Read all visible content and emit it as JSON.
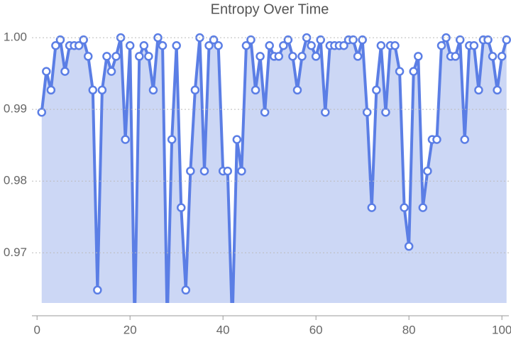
{
  "chart_data": {
    "type": "area_line",
    "title": "Entropy Over Time",
    "x": [
      1,
      2,
      3,
      4,
      5,
      6,
      7,
      8,
      9,
      10,
      11,
      12,
      13,
      14,
      15,
      16,
      17,
      18,
      19,
      20,
      21,
      22,
      23,
      24,
      25,
      26,
      27,
      28,
      29,
      30,
      31,
      32,
      33,
      34,
      35,
      36,
      37,
      38,
      39,
      40,
      41,
      42,
      43,
      44,
      45,
      46,
      47,
      48,
      49,
      50,
      51,
      52,
      53,
      54,
      55,
      56,
      57,
      58,
      59,
      60,
      61,
      62,
      63,
      64,
      65,
      66,
      67,
      68,
      69,
      70,
      71,
      72,
      73,
      74,
      75,
      76,
      77,
      78,
      79,
      80,
      81,
      82,
      83,
      84,
      85,
      86,
      87,
      88,
      89,
      90,
      91,
      92,
      93,
      94,
      95,
      96,
      97,
      98,
      99,
      100,
      101
    ],
    "values": [
      0.9896,
      0.9953,
      0.9927,
      0.9989,
      0.9997,
      0.9953,
      0.9989,
      0.9989,
      0.9989,
      0.9997,
      0.9974,
      0.9927,
      0.9648,
      0.9927,
      0.9974,
      0.9953,
      0.9974,
      1.0,
      0.9858,
      0.9989,
      0.96,
      0.9974,
      0.9989,
      0.9974,
      0.9927,
      1.0,
      0.9989,
      0.96,
      0.9858,
      0.9989,
      0.9763,
      0.9648,
      0.9814,
      0.9927,
      1.0,
      0.9814,
      0.9989,
      0.9997,
      0.9989,
      0.9814,
      0.9814,
      0.96,
      0.9858,
      0.9814,
      0.9989,
      0.9997,
      0.9927,
      0.9974,
      0.9896,
      0.9989,
      0.9974,
      0.9974,
      0.9989,
      0.9997,
      0.9974,
      0.9927,
      0.9974,
      1.0,
      0.9989,
      0.9974,
      0.9997,
      0.9896,
      0.9989,
      0.9989,
      0.9989,
      0.9989,
      0.9997,
      0.9997,
      0.9974,
      0.9997,
      0.9896,
      0.9763,
      0.9927,
      0.9989,
      0.9896,
      0.9989,
      0.9989,
      0.9953,
      0.9763,
      0.9709,
      0.9953,
      0.9974,
      0.9763,
      0.9814,
      0.9858,
      0.9858,
      0.9989,
      1.0,
      0.9974,
      0.9974,
      0.9997,
      0.9858,
      0.9989,
      0.9989,
      0.9927,
      0.9997,
      0.9997,
      0.9974,
      0.9927,
      0.9974,
      0.9997
    ],
    "color": "#5b7ee5",
    "fill_color": "#ccd7f5",
    "xlim": [
      -1.1,
      101.5
    ],
    "xticks": [
      0,
      20,
      40,
      60,
      80,
      100
    ],
    "ylim": [
      0.963,
      1.0013
    ],
    "yticks": [
      0.97,
      0.98,
      0.99,
      {
        "value": 1,
        "label": "1.00"
      }
    ],
    "grid": true
  }
}
